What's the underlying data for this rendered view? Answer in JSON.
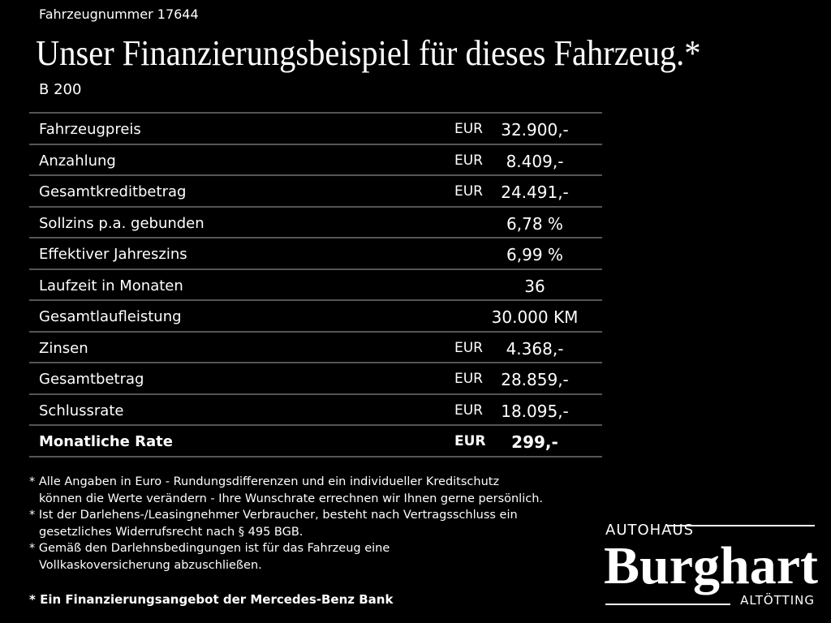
{
  "header": {
    "vehicle_number": "Fahrzeugnummer 17644",
    "title": "Unser Finanzierungsbeispiel für dieses Fahrzeug.*",
    "model": "B 200"
  },
  "table": {
    "rows": [
      {
        "label": "Fahrzeugpreis",
        "currency": "EUR",
        "value": "32.900,-"
      },
      {
        "label": "Anzahlung",
        "currency": "EUR",
        "value": "8.409,-"
      },
      {
        "label": "Gesamtkreditbetrag",
        "currency": "EUR",
        "value": "24.491,-"
      },
      {
        "label": "Sollzins p.a. gebunden",
        "value": "6,78 %"
      },
      {
        "label": "Effektiver Jahreszins",
        "value": "6,99 %"
      },
      {
        "label": "Laufzeit in Monaten",
        "value": "36"
      },
      {
        "label": "Gesamtlaufleistung",
        "value": "30.000 KM"
      },
      {
        "label": "Zinsen",
        "currency": "EUR",
        "value": "4.368,-"
      },
      {
        "label": "Gesamtbetrag",
        "currency": "EUR",
        "value": "28.859,-"
      },
      {
        "label": "Schlussrate",
        "currency": "EUR",
        "value": "18.095,-"
      },
      {
        "label": "Monatliche Rate",
        "currency": "EUR",
        "value": "299,-",
        "bold": true
      }
    ]
  },
  "notes": [
    [
      "* Alle Angaben in Euro - Rundungsdifferenzen und ein individueller Kreditschutz",
      "können die Werte verändern - Ihre Wunschrate errechnen wir Ihnen gerne persönlich."
    ],
    [
      "* Ist der Darlehens-/Leasingnehmer Verbraucher, besteht nach Vertragsschluss ein",
      "gesetzliches Widerrufsrecht nach § 495 BGB."
    ],
    [
      "* Gemäß den Darlehnsbedingungen ist für das Fahrzeug eine",
      "Vollkaskoversicherung abzuschließen."
    ]
  ],
  "final_note": "* Ein Finanzierungsangebot der Mercedes-Benz Bank",
  "logo": {
    "top": "AUTOHAUS",
    "name": "Burghart",
    "city": "ALTÖTTING"
  }
}
